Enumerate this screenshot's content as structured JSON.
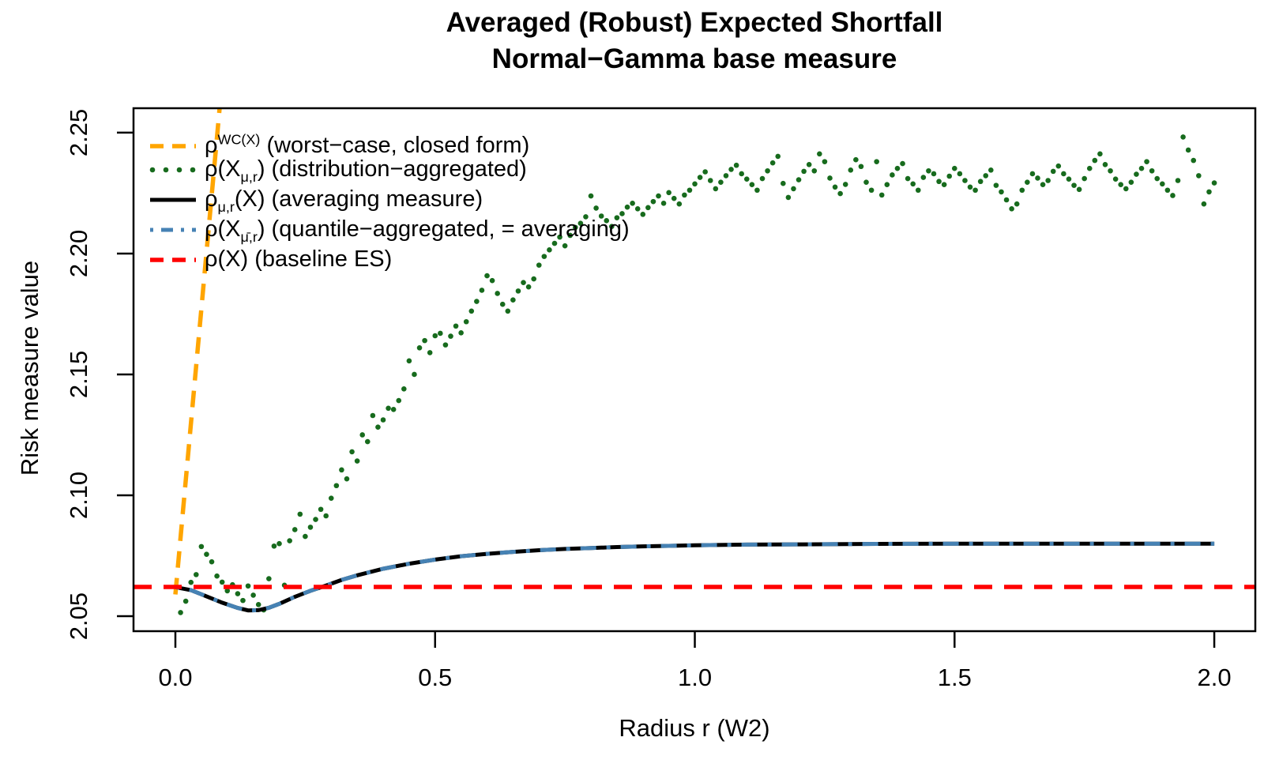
{
  "chart_data": {
    "type": "line",
    "title": "Averaged (Robust) Expected Shortfall",
    "subtitle": "Normal−Gamma base measure",
    "xlabel": "Radius r (W2)",
    "ylabel": "Risk measure value",
    "xlim": [
      -0.0806,
      2.079
    ],
    "ylim": [
      2.0438,
      2.2601
    ],
    "grid": false,
    "legend_position": "top-left-inside",
    "x_ticks": {
      "values": [
        0.0,
        0.5,
        1.0,
        1.5,
        2.0
      ],
      "labels": [
        "0.0",
        "0.5",
        "1.0",
        "1.5",
        "2.0"
      ]
    },
    "y_ticks": {
      "values": [
        2.05,
        2.1,
        2.15,
        2.2,
        2.25
      ],
      "labels": [
        "2.05",
        "2.10",
        "2.15",
        "2.20",
        "2.25"
      ]
    },
    "colors": {
      "worst_case": "#FFA500",
      "distribution": "#176b1d",
      "averaging": "#000000",
      "quantile": "#4682B4",
      "baseline": "#FF0000"
    },
    "series": [
      {
        "id": "worst-case",
        "style": "dashed",
        "color": "#FFA500",
        "width": 5.5,
        "dash": "21 13",
        "label_parts": [
          {
            "t": "n",
            "s": "ρ"
          },
          {
            "t": "sup",
            "s": "WC(X)"
          },
          {
            "t": "n",
            "s": " (worst−case, closed form)"
          }
        ],
        "points": [
          [
            0.0,
            2.059
          ],
          [
            0.0852,
            2.2601
          ]
        ]
      },
      {
        "id": "distribution-aggregated",
        "style": "scatter",
        "color": "#176b1d",
        "radius": 3.3,
        "label_parts": [
          {
            "t": "n",
            "s": "ρ(X"
          },
          {
            "t": "sub",
            "s": "μ,r"
          },
          {
            "t": "n",
            "s": ") (distribution−aggregated)"
          }
        ],
        "points": [
          [
            0.01,
            2.0515
          ],
          [
            0.02,
            2.0562
          ],
          [
            0.03,
            2.064
          ],
          [
            0.04,
            2.0672
          ],
          [
            0.05,
            2.0788
          ],
          [
            0.06,
            2.0756
          ],
          [
            0.07,
            2.0725
          ],
          [
            0.08,
            2.0666
          ],
          [
            0.09,
            2.0641
          ],
          [
            0.1,
            2.0605
          ],
          [
            0.11,
            2.063
          ],
          [
            0.12,
            2.0593
          ],
          [
            0.13,
            2.0565
          ],
          [
            0.14,
            2.0625
          ],
          [
            0.15,
            2.0587
          ],
          [
            0.16,
            2.0548
          ],
          [
            0.17,
            2.0526
          ],
          [
            0.18,
            2.0655
          ],
          [
            0.19,
            2.079
          ],
          [
            0.2,
            2.08
          ],
          [
            0.21,
            2.0628
          ],
          [
            0.22,
            2.0812
          ],
          [
            0.23,
            2.0858
          ],
          [
            0.24,
            2.0922
          ],
          [
            0.25,
            2.083
          ],
          [
            0.26,
            2.0868
          ],
          [
            0.27,
            2.09
          ],
          [
            0.28,
            2.0942
          ],
          [
            0.29,
            2.0915
          ],
          [
            0.3,
            2.0988
          ],
          [
            0.31,
            2.104
          ],
          [
            0.32,
            2.1105
          ],
          [
            0.33,
            2.1068
          ],
          [
            0.34,
            2.118
          ],
          [
            0.35,
            2.1142
          ],
          [
            0.36,
            2.125
          ],
          [
            0.37,
            2.1222
          ],
          [
            0.38,
            2.133
          ],
          [
            0.39,
            2.1282
          ],
          [
            0.4,
            2.1312
          ],
          [
            0.41,
            2.136
          ],
          [
            0.42,
            2.1355
          ],
          [
            0.43,
            2.1392
          ],
          [
            0.44,
            2.144
          ],
          [
            0.45,
            2.1556
          ],
          [
            0.46,
            2.15
          ],
          [
            0.47,
            2.161
          ],
          [
            0.48,
            2.164
          ],
          [
            0.49,
            2.159
          ],
          [
            0.5,
            2.166
          ],
          [
            0.51,
            2.167
          ],
          [
            0.52,
            2.1622
          ],
          [
            0.53,
            2.1658
          ],
          [
            0.54,
            2.17
          ],
          [
            0.55,
            2.1672
          ],
          [
            0.56,
            2.1718
          ],
          [
            0.57,
            2.1762
          ],
          [
            0.58,
            2.1802
          ],
          [
            0.59,
            2.1848
          ],
          [
            0.6,
            2.1908
          ],
          [
            0.61,
            2.1888
          ],
          [
            0.62,
            2.1835
          ],
          [
            0.63,
            2.179
          ],
          [
            0.64,
            2.1762
          ],
          [
            0.65,
            2.1808
          ],
          [
            0.66,
            2.1845
          ],
          [
            0.67,
            2.188
          ],
          [
            0.68,
            2.1862
          ],
          [
            0.69,
            2.1895
          ],
          [
            0.7,
            2.1952
          ],
          [
            0.71,
            2.1988
          ],
          [
            0.72,
            2.2015
          ],
          [
            0.73,
            2.2042
          ],
          [
            0.74,
            2.2068
          ],
          [
            0.75,
            2.2032
          ],
          [
            0.76,
            2.2075
          ],
          [
            0.77,
            2.2108
          ],
          [
            0.78,
            2.2125
          ],
          [
            0.79,
            2.2152
          ],
          [
            0.8,
            2.2238
          ],
          [
            0.81,
            2.2188
          ],
          [
            0.82,
            2.2155
          ],
          [
            0.83,
            2.2136
          ],
          [
            0.84,
            2.2112
          ],
          [
            0.85,
            2.2148
          ],
          [
            0.86,
            2.2165
          ],
          [
            0.87,
            2.2192
          ],
          [
            0.88,
            2.2208
          ],
          [
            0.89,
            2.2185
          ],
          [
            0.9,
            2.2162
          ],
          [
            0.91,
            2.219
          ],
          [
            0.92,
            2.2215
          ],
          [
            0.93,
            2.2238
          ],
          [
            0.94,
            2.2208
          ],
          [
            0.95,
            2.2252
          ],
          [
            0.96,
            2.2228
          ],
          [
            0.97,
            2.2205
          ],
          [
            0.98,
            2.2242
          ],
          [
            0.99,
            2.2262
          ],
          [
            1.0,
            2.2288
          ],
          [
            1.01,
            2.2315
          ],
          [
            1.02,
            2.2338
          ],
          [
            1.03,
            2.2302
          ],
          [
            1.04,
            2.2268
          ],
          [
            1.05,
            2.2295
          ],
          [
            1.06,
            2.2322
          ],
          [
            1.07,
            2.2348
          ],
          [
            1.08,
            2.2365
          ],
          [
            1.09,
            2.233
          ],
          [
            1.1,
            2.2308
          ],
          [
            1.11,
            2.2285
          ],
          [
            1.12,
            2.2262
          ],
          [
            1.13,
            2.231
          ],
          [
            1.14,
            2.2342
          ],
          [
            1.15,
            2.2375
          ],
          [
            1.16,
            2.2402
          ],
          [
            1.17,
            2.229
          ],
          [
            1.18,
            2.2232
          ],
          [
            1.19,
            2.2268
          ],
          [
            1.2,
            2.2305
          ],
          [
            1.21,
            2.234
          ],
          [
            1.22,
            2.2368
          ],
          [
            1.23,
            2.2342
          ],
          [
            1.24,
            2.2412
          ],
          [
            1.25,
            2.238
          ],
          [
            1.26,
            2.2312
          ],
          [
            1.27,
            2.2275
          ],
          [
            1.28,
            2.2248
          ],
          [
            1.29,
            2.2286
          ],
          [
            1.3,
            2.2345
          ],
          [
            1.31,
            2.2388
          ],
          [
            1.32,
            2.236
          ],
          [
            1.33,
            2.2295
          ],
          [
            1.34,
            2.2262
          ],
          [
            1.35,
            2.238
          ],
          [
            1.36,
            2.2242
          ],
          [
            1.37,
            2.2285
          ],
          [
            1.38,
            2.2325
          ],
          [
            1.39,
            2.2352
          ],
          [
            1.4,
            2.2372
          ],
          [
            1.41,
            2.231
          ],
          [
            1.42,
            2.2288
          ],
          [
            1.43,
            2.2262
          ],
          [
            1.44,
            2.2315
          ],
          [
            1.45,
            2.2342
          ],
          [
            1.46,
            2.233
          ],
          [
            1.47,
            2.2298
          ],
          [
            1.48,
            2.2285
          ],
          [
            1.49,
            2.232
          ],
          [
            1.5,
            2.2352
          ],
          [
            1.51,
            2.233
          ],
          [
            1.52,
            2.2302
          ],
          [
            1.53,
            2.2275
          ],
          [
            1.54,
            2.2262
          ],
          [
            1.55,
            2.2298
          ],
          [
            1.56,
            2.2322
          ],
          [
            1.57,
            2.2345
          ],
          [
            1.58,
            2.2282
          ],
          [
            1.59,
            2.2255
          ],
          [
            1.6,
            2.2222
          ],
          [
            1.61,
            2.2185
          ],
          [
            1.62,
            2.2205
          ],
          [
            1.63,
            2.2262
          ],
          [
            1.64,
            2.2295
          ],
          [
            1.65,
            2.233
          ],
          [
            1.66,
            2.2312
          ],
          [
            1.67,
            2.2285
          ],
          [
            1.68,
            2.2302
          ],
          [
            1.69,
            2.234
          ],
          [
            1.7,
            2.2362
          ],
          [
            1.71,
            2.233
          ],
          [
            1.72,
            2.2308
          ],
          [
            1.73,
            2.2282
          ],
          [
            1.74,
            2.2265
          ],
          [
            1.75,
            2.231
          ],
          [
            1.76,
            2.2352
          ],
          [
            1.77,
            2.2385
          ],
          [
            1.78,
            2.2412
          ],
          [
            1.79,
            2.2368
          ],
          [
            1.8,
            2.2342
          ],
          [
            1.81,
            2.2308
          ],
          [
            1.82,
            2.2285
          ],
          [
            1.83,
            2.2268
          ],
          [
            1.84,
            2.2295
          ],
          [
            1.85,
            2.2328
          ],
          [
            1.86,
            2.2352
          ],
          [
            1.87,
            2.238
          ],
          [
            1.88,
            2.2342
          ],
          [
            1.89,
            2.231
          ],
          [
            1.9,
            2.2288
          ],
          [
            1.91,
            2.2262
          ],
          [
            1.92,
            2.224
          ],
          [
            1.93,
            2.2302
          ],
          [
            1.94,
            2.2482
          ],
          [
            1.95,
            2.2428
          ],
          [
            1.96,
            2.2385
          ],
          [
            1.97,
            2.2322
          ],
          [
            1.98,
            2.2205
          ],
          [
            1.99,
            2.2255
          ],
          [
            2.0,
            2.2292
          ]
        ]
      },
      {
        "id": "averaging-measure",
        "style": "solid",
        "color": "#000000",
        "width": 5,
        "label_parts": [
          {
            "t": "n",
            "s": "ρ"
          },
          {
            "t": "sub",
            "s": "μ,r"
          },
          {
            "t": "n",
            "s": "(X) (averaging measure)"
          }
        ],
        "points": [
          [
            0.0,
            2.062
          ],
          [
            0.03,
            2.0608
          ],
          [
            0.06,
            2.0582
          ],
          [
            0.09,
            2.0556
          ],
          [
            0.12,
            2.0534
          ],
          [
            0.14,
            2.0524
          ],
          [
            0.16,
            2.0525
          ],
          [
            0.18,
            2.0535
          ],
          [
            0.2,
            2.0551
          ],
          [
            0.23,
            2.058
          ],
          [
            0.26,
            2.0605
          ],
          [
            0.29,
            2.0627
          ],
          [
            0.32,
            2.065
          ],
          [
            0.35,
            2.0669
          ],
          [
            0.4,
            2.0696
          ],
          [
            0.45,
            2.0717
          ],
          [
            0.5,
            2.0734
          ],
          [
            0.55,
            2.0748
          ],
          [
            0.6,
            2.0758
          ],
          [
            0.65,
            2.0766
          ],
          [
            0.7,
            2.0773
          ],
          [
            0.75,
            2.0778
          ],
          [
            0.8,
            2.0782
          ],
          [
            0.85,
            2.0786
          ],
          [
            0.9,
            2.0789
          ],
          [
            0.95,
            2.0791
          ],
          [
            1.0,
            2.0793
          ],
          [
            1.1,
            2.0796
          ],
          [
            1.2,
            2.0797
          ],
          [
            1.35,
            2.0799
          ],
          [
            1.5,
            2.08
          ],
          [
            1.7,
            2.08
          ],
          [
            1.85,
            2.08
          ],
          [
            2.0,
            2.08
          ]
        ]
      },
      {
        "id": "quantile-aggregated",
        "style": "dashdot",
        "color": "#4682B4",
        "width": 5,
        "dash": "5 13 20 13",
        "points_from": "averaging-measure",
        "label_parts": [
          {
            "t": "n",
            "s": "ρ(X"
          },
          {
            "t": "sub",
            "s": "μ̄,r"
          },
          {
            "t": "n",
            "s": ") (quantile−aggregated, = averaging)"
          }
        ],
        "points": []
      },
      {
        "id": "baseline-es",
        "style": "dashed",
        "color": "#FF0000",
        "width": 5.5,
        "dash": "23 15",
        "label_parts": [
          {
            "t": "n",
            "s": "ρ(X) (baseline ES)"
          }
        ],
        "points": [
          [
            -0.0806,
            2.0621
          ],
          [
            2.079,
            2.0621
          ]
        ]
      }
    ]
  }
}
